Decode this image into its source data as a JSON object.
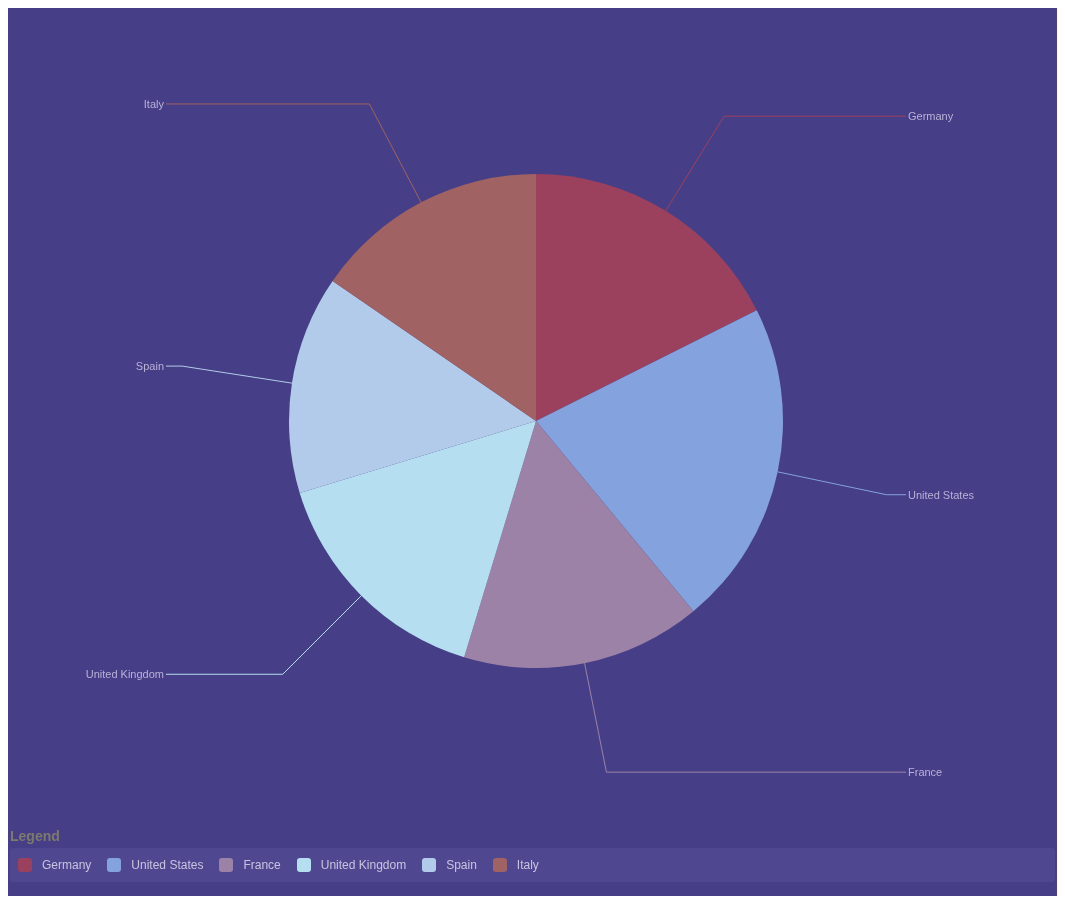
{
  "chart_data": {
    "type": "pie",
    "categories": [
      "Germany",
      "United States",
      "France",
      "United Kingdom",
      "Spain",
      "Italy"
    ],
    "values": [
      17.6,
      21.4,
      15.7,
      15.6,
      14.3,
      15.4
    ],
    "colors": [
      "#9b415d",
      "#84a2de",
      "#9d82a8",
      "#b5dff0",
      "#b3cbea",
      "#a06262"
    ],
    "legend_title": "Legend",
    "legend": "bottom"
  }
}
